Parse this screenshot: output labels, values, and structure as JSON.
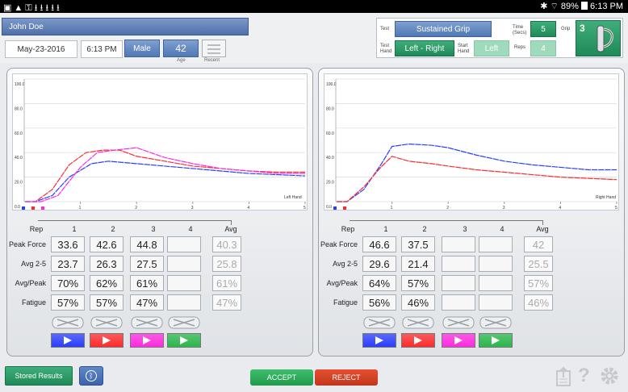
{
  "statusbar": {
    "icons_left": "▣▲⚿⭳⭳⭳⭳⭳",
    "bluetooth": "✱",
    "wifi": "⌔",
    "battery": "89%",
    "time": "6:13 PM"
  },
  "patient": {
    "name": "John Doe",
    "date": "May-23-2016",
    "time": "6:13 PM",
    "gender": "Male",
    "age": "42",
    "age_label": "Age",
    "recent_label": "Recent"
  },
  "test": {
    "test_label": "Test",
    "test_value": "Sustained Grip",
    "test_hand_label": "Test Hand",
    "test_hand_value": "Left - Right",
    "start_hand_label": "Start Hand",
    "start_hand_value": "Left",
    "time_label": "Time (Secs)",
    "time_value": "5",
    "reps_label": "Reps",
    "reps_value": "4",
    "grip_label": "Grip",
    "grip_value": "3"
  },
  "left_panel": {
    "hand_label": "Left Hand",
    "yticks": [
      "100.0",
      "80.0",
      "60.0",
      "40.0",
      "20.0",
      "0.0"
    ],
    "xticks": [
      "1",
      "2",
      "3",
      "4",
      "5"
    ],
    "col_headers": [
      "Rep",
      "1",
      "2",
      "3",
      "4",
      "Avg"
    ],
    "rows": [
      {
        "label": "Peak Force",
        "values": [
          "33.6",
          "42.6",
          "44.8",
          ""
        ],
        "avg": "40.3"
      },
      {
        "label": "Avg 2-5",
        "values": [
          "23.7",
          "26.3",
          "27.5",
          ""
        ],
        "avg": "25.8"
      },
      {
        "label": "Avg/Peak",
        "values": [
          "70%",
          "62%",
          "61%",
          ""
        ],
        "avg": "61%"
      },
      {
        "label": "Fatigue",
        "values": [
          "57%",
          "57%",
          "47%",
          ""
        ],
        "avg": "47%"
      }
    ]
  },
  "right_panel": {
    "hand_label": "Right Hand",
    "yticks": [
      "100.0",
      "80.0",
      "60.0",
      "40.0",
      "20.0",
      "0.0"
    ],
    "xticks": [
      "1",
      "2",
      "3",
      "4",
      "5"
    ],
    "col_headers": [
      "Rep",
      "1",
      "2",
      "3",
      "4",
      "Avg"
    ],
    "rows": [
      {
        "label": "Peak Force",
        "values": [
          "46.6",
          "37.5",
          "",
          ""
        ],
        "avg": "42"
      },
      {
        "label": "Avg 2-5",
        "values": [
          "29.6",
          "21.4",
          "",
          ""
        ],
        "avg": "25.5"
      },
      {
        "label": "Avg/Peak",
        "values": [
          "64%",
          "57%",
          "",
          ""
        ],
        "avg": "57%"
      },
      {
        "label": "Fatigue",
        "values": [
          "56%",
          "46%",
          "",
          ""
        ],
        "avg": "46%"
      }
    ]
  },
  "colors": {
    "rep1": "#2a3dff",
    "rep2": "#ff2a2a",
    "rep3": "#ff2ae0",
    "rep4": "#2ab84a"
  },
  "bottom": {
    "stored_results": "Stored Results",
    "accept": "ACCEPT",
    "reject": "REJECT",
    "help": "?"
  },
  "chart_data": [
    {
      "type": "line",
      "xlabel": "Left Hand",
      "ylim": [
        0,
        100
      ],
      "xlim": [
        0,
        5
      ],
      "series": [
        {
          "name": "1",
          "x": [
            0,
            0.2,
            0.5,
            0.8,
            1.2,
            1.5,
            2,
            2.5,
            3,
            3.5,
            4,
            4.5,
            5
          ],
          "y": [
            0,
            0,
            5,
            20,
            31,
            33,
            31,
            29,
            27,
            25,
            23,
            22,
            21
          ]
        },
        {
          "name": "2",
          "x": [
            0,
            0.2,
            0.5,
            0.8,
            1.1,
            1.4,
            1.7,
            2,
            2.5,
            3,
            3.5,
            4,
            4.5,
            5
          ],
          "y": [
            0,
            0,
            10,
            30,
            40,
            42,
            42,
            37,
            33,
            29,
            27,
            25,
            24,
            24
          ]
        },
        {
          "name": "3",
          "x": [
            0,
            0.3,
            0.6,
            1,
            1.3,
            1.6,
            2,
            2.5,
            3,
            3.5,
            4,
            4.5,
            5
          ],
          "y": [
            0,
            0,
            5,
            28,
            40,
            42,
            44,
            36,
            31,
            27,
            25,
            23,
            23
          ]
        }
      ]
    },
    {
      "type": "line",
      "xlabel": "Right Hand",
      "ylim": [
        0,
        100
      ],
      "xlim": [
        0,
        5
      ],
      "series": [
        {
          "name": "1",
          "x": [
            0,
            0.2,
            0.5,
            0.8,
            1,
            1.3,
            1.7,
            2,
            2.5,
            3,
            3.5,
            4,
            4.5,
            5
          ],
          "y": [
            0,
            0,
            10,
            30,
            45,
            47,
            46,
            44,
            38,
            33,
            30,
            28,
            26,
            26
          ]
        },
        {
          "name": "2",
          "x": [
            0,
            0.2,
            0.5,
            0.8,
            1,
            1.3,
            1.7,
            2,
            2.5,
            3,
            3.5,
            4,
            4.5,
            5
          ],
          "y": [
            0,
            0,
            12,
            28,
            37,
            33,
            31,
            29,
            26,
            24,
            22,
            20,
            19,
            18
          ]
        }
      ]
    }
  ]
}
